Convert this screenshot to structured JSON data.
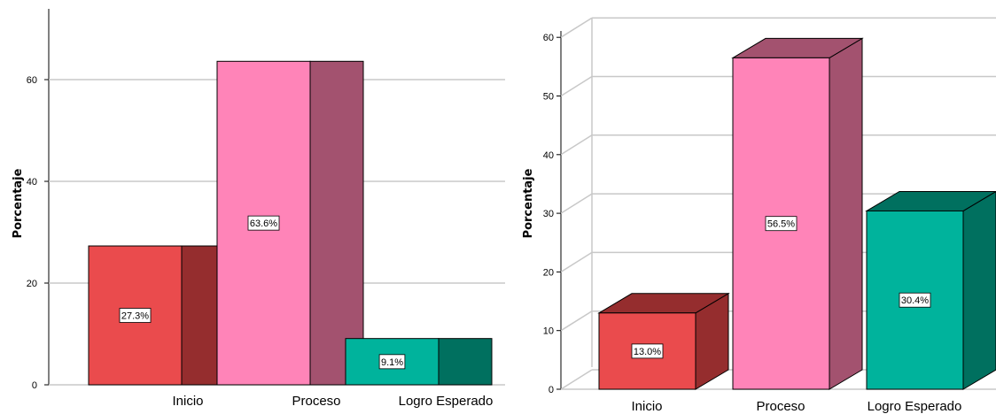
{
  "chart_data": [
    {
      "type": "bar",
      "title": "",
      "ylabel": "Porcentaje",
      "xlabel": "",
      "categories": [
        "Inicio",
        "Proceso",
        "Logro Esperado"
      ],
      "values": [
        27.3,
        63.6,
        9.1
      ],
      "data_labels": [
        "27.3%",
        "63.6%",
        "9.1%"
      ],
      "yticks": [
        "0",
        "20",
        "40",
        "60"
      ],
      "ylim": [
        0,
        73
      ],
      "grid": true,
      "colors": {
        "front": [
          "#ea4b4d",
          "#ff84b8",
          "#00b39c"
        ],
        "side": [
          "#952d2e",
          "#a3526f",
          "#00705f"
        ]
      }
    },
    {
      "type": "bar",
      "title": "",
      "ylabel": "Porcentaje",
      "xlabel": "",
      "categories": [
        "Inicio",
        "Proceso",
        "Logro Esperado"
      ],
      "values": [
        13.0,
        56.5,
        30.4
      ],
      "data_labels": [
        "13.0%",
        "56.5%",
        "30.4%"
      ],
      "yticks": [
        "0",
        "10",
        "20",
        "30",
        "40",
        "50",
        "60"
      ],
      "ylim": [
        0,
        63
      ],
      "grid": true,
      "colors": {
        "front": [
          "#ea4b4d",
          "#ff84b8",
          "#00b39c"
        ],
        "side": [
          "#952d2e",
          "#a3526f",
          "#00705f"
        ],
        "top": [
          "#952d2e",
          "#a3526f",
          "#00705f"
        ]
      }
    }
  ]
}
